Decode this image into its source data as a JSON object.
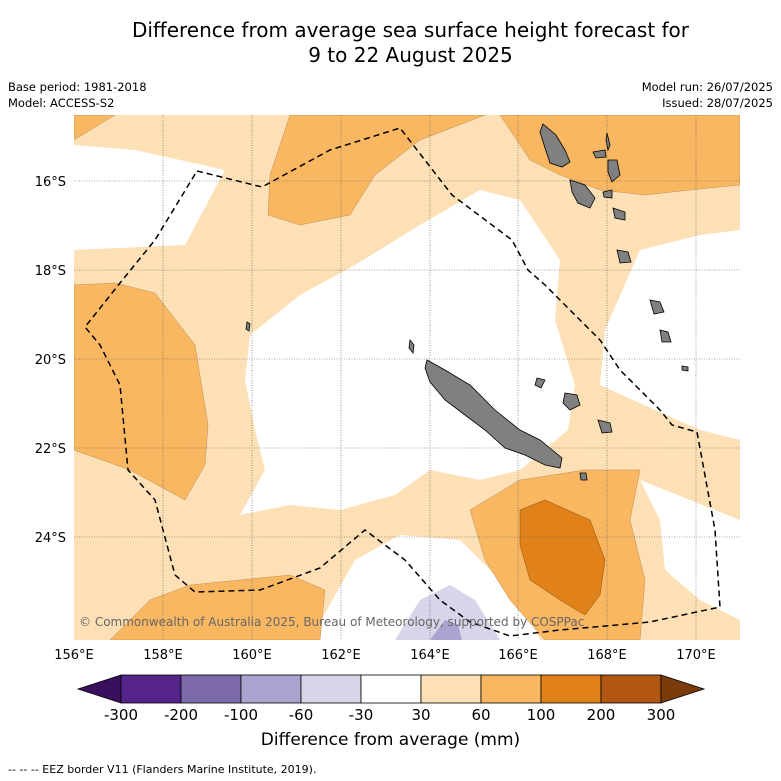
{
  "title_line1": "Difference from average sea surface height forecast for",
  "title_line2": "9 to 22 August 2025",
  "meta_left": {
    "base_period": "Base period: 1981-2018",
    "model": "Model: ACCESS-S2"
  },
  "meta_right": {
    "model_run": "Model run: 26/07/2025",
    "issued": "Issued: 28/07/2025"
  },
  "map": {
    "lat_ticks": [
      "16°S",
      "18°S",
      "20°S",
      "22°S",
      "24°S"
    ],
    "lon_ticks": [
      "156°E",
      "158°E",
      "160°E",
      "162°E",
      "164°E",
      "166°E",
      "168°E",
      "170°E"
    ],
    "copyright": "© Commonwealth of Australia 2025, Bureau of Meteorology, supported by COSPPac",
    "land_color": "#808080"
  },
  "colorbar": {
    "ticks": [
      "-300",
      "-200",
      "-100",
      "-60",
      "-30",
      "30",
      "60",
      "100",
      "200",
      "300"
    ],
    "colors": [
      "#3a0f5e",
      "#55248a",
      "#7c6aa8",
      "#aaa3cf",
      "#d6d5ea",
      "#ffffff",
      "#fde0b5",
      "#f9b762",
      "#e0811a",
      "#b05610",
      "#7a3a0a"
    ],
    "label": "Difference from average (mm)"
  },
  "footnote": "--  --  -- EEZ border V11 (Flanders Marine Institute, 2019)."
}
